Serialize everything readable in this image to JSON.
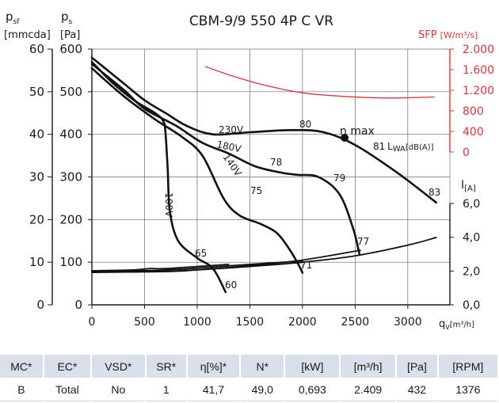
{
  "chart_data": {
    "type": "line",
    "title": "CBM-9/9 550 4P C VR",
    "x_axis": {
      "label": "q",
      "label_sub": "V",
      "unit": "[m³/h]",
      "range": [
        0,
        3400
      ],
      "ticks": [
        "0",
        "500",
        "1000",
        "1500",
        "2000",
        "2500",
        "3000"
      ]
    },
    "y_axis_psf": {
      "label": "p",
      "label_sub": "sf",
      "unit": "[mmcda]",
      "range": [
        0,
        60
      ],
      "ticks": [
        "0",
        "10",
        "20",
        "30",
        "40",
        "50",
        "60"
      ]
    },
    "y_axis_ps": {
      "label": "p",
      "label_sub": "s",
      "unit": "[Pa]",
      "range": [
        0,
        600
      ],
      "ticks": [
        "0",
        "100",
        "200",
        "300",
        "400",
        "500",
        "600"
      ]
    },
    "y_axis_sfp": {
      "label": "SFP",
      "unit": "[W/m³/s]",
      "color": "#d9353a",
      "ticks": [
        "0",
        "400",
        "800",
        "1.200",
        "1.600",
        "2.000"
      ]
    },
    "y_axis_current": {
      "label": "I",
      "unit": "[A]",
      "ticks": [
        "0,0",
        "2,0",
        "4,0",
        "6,0"
      ]
    },
    "curve_labels": [
      "230V",
      "180V",
      "140V",
      "100V"
    ],
    "series": [
      {
        "name": "230V",
        "kind": "pressure",
        "x": [
          0,
          300,
          500,
          700,
          900,
          1150,
          1500,
          1900,
          2200,
          2500,
          2900,
          3270
        ],
        "y": [
          580,
          520,
          480,
          450,
          420,
          400,
          405,
          410,
          405,
          375,
          310,
          240
        ]
      },
      {
        "name": "180V",
        "kind": "pressure",
        "x": [
          0,
          300,
          500,
          800,
          1050,
          1300,
          1550,
          1800,
          1950,
          2150,
          2350,
          2480,
          2540
        ],
        "y": [
          565,
          505,
          460,
          420,
          380,
          355,
          325,
          310,
          305,
          300,
          260,
          180,
          120
        ]
      },
      {
        "name": "140V",
        "kind": "pressure",
        "x": [
          0,
          300,
          600,
          850,
          1050,
          1250,
          1400,
          1600,
          1750,
          1850,
          1950,
          2000
        ],
        "y": [
          555,
          490,
          435,
          395,
          350,
          250,
          210,
          190,
          170,
          140,
          100,
          75
        ]
      },
      {
        "name": "100V",
        "kind": "pressure",
        "x": [
          0,
          200,
          400,
          600,
          680,
          700,
          720,
          740,
          820,
          1000,
          1150,
          1270
        ],
        "y": [
          570,
          520,
          480,
          450,
          430,
          400,
          320,
          220,
          150,
          110,
          85,
          30
        ]
      },
      {
        "name": "100V",
        "kind": "current",
        "x": [
          0,
          400,
          550,
          700,
          1000,
          1300
        ],
        "y": [
          80,
          82,
          85,
          85,
          90,
          95
        ]
      },
      {
        "name": "140V",
        "kind": "current",
        "x": [
          0,
          500,
          700,
          1000,
          1500,
          2000
        ],
        "y": [
          78,
          80,
          82,
          86,
          95,
          103
        ]
      },
      {
        "name": "180V",
        "kind": "current",
        "x": [
          0,
          700,
          1000,
          1500,
          2000,
          2550
        ],
        "y": [
          77,
          78,
          82,
          92,
          105,
          128
        ]
      },
      {
        "name": "230V",
        "kind": "current",
        "x": [
          0,
          600,
          1000,
          1500,
          2000,
          2500,
          3000,
          3270
        ],
        "y": [
          76,
          78,
          82,
          90,
          100,
          115,
          140,
          158
        ]
      },
      {
        "name": "SFP",
        "kind": "sfp",
        "color": "#d9353a",
        "x": [
          1080,
          1300,
          1600,
          2000,
          2400,
          2800,
          3250
        ],
        "y": [
          1660,
          1500,
          1320,
          1150,
          1080,
          1050,
          1070
        ]
      }
    ],
    "annotations": {
      "efficiency_marks": [
        "65",
        "75",
        "78",
        "80",
        "81",
        "83",
        "79",
        "77",
        "71",
        "60"
      ],
      "eta_max": "η max",
      "eta_max_point": {
        "x": 2400,
        "y": 392
      },
      "sound": "L",
      "sound_sub": "WA",
      "sound_unit": "[dB(A)]"
    },
    "grid": true
  },
  "specs_table": {
    "headers": [
      "MC*",
      "EC*",
      "VSD*",
      "SR*",
      "η[%]*",
      "N*",
      "[kW]",
      "[m³/h]",
      "[Pa]",
      "[RPM]"
    ],
    "values": [
      "B",
      "Total",
      "No",
      "1",
      "41,7",
      "49,0",
      "0,693",
      "2.409",
      "432",
      "1376"
    ]
  }
}
